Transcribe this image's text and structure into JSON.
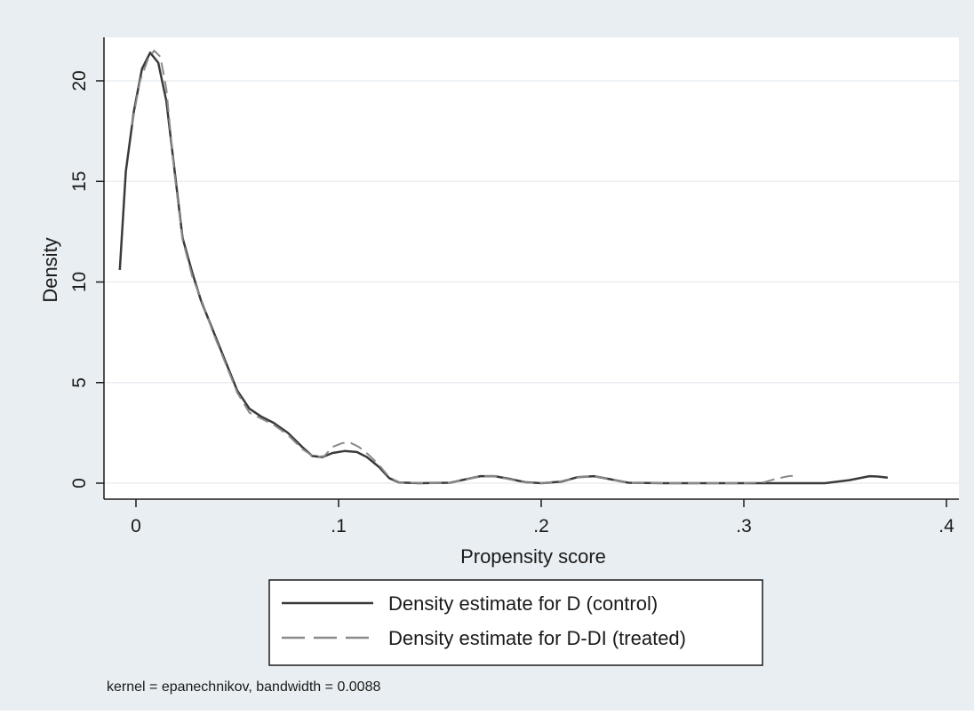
{
  "colors": {
    "outer_background": "#e9eef2",
    "plot_background": "#ffffff",
    "grid": "#e9eef2",
    "series_line": "#3a3a3a",
    "series_dashed": "#8a8a8a",
    "legend_border": "#1a1a1a"
  },
  "chart_data": {
    "type": "line",
    "title": "",
    "xlabel": "Propensity score",
    "ylabel": "Density",
    "xlim": [
      -0.01,
      0.4
    ],
    "ylim": [
      0,
      22
    ],
    "xticks": [
      0,
      0.1,
      0.2,
      0.3,
      0.4
    ],
    "xtick_labels": [
      "0",
      ".1",
      ".2",
      ".3",
      ".4"
    ],
    "yticks": [
      0,
      5,
      10,
      15,
      20
    ],
    "ytick_labels": [
      "0",
      "5",
      "10",
      "15",
      "20"
    ],
    "grid": "horizontal",
    "legend_position": "bottom",
    "note": "kernel = epanechnikov, bandwidth = 0.0088",
    "series": [
      {
        "name": "Density estimate for D (control)",
        "style": "solid",
        "points": [
          [
            -0.008,
            10.6
          ],
          [
            -0.005,
            15.5
          ],
          [
            -0.001,
            18.5
          ],
          [
            0.003,
            20.6
          ],
          [
            0.007,
            21.4
          ],
          [
            0.011,
            20.9
          ],
          [
            0.015,
            19.0
          ],
          [
            0.019,
            15.6
          ],
          [
            0.023,
            12.2
          ],
          [
            0.028,
            10.4
          ],
          [
            0.032,
            9.1
          ],
          [
            0.038,
            7.6
          ],
          [
            0.044,
            6.1
          ],
          [
            0.05,
            4.6
          ],
          [
            0.056,
            3.7
          ],
          [
            0.062,
            3.3
          ],
          [
            0.068,
            3.0
          ],
          [
            0.075,
            2.5
          ],
          [
            0.082,
            1.8
          ],
          [
            0.087,
            1.35
          ],
          [
            0.092,
            1.3
          ],
          [
            0.097,
            1.5
          ],
          [
            0.103,
            1.6
          ],
          [
            0.109,
            1.55
          ],
          [
            0.114,
            1.3
          ],
          [
            0.12,
            0.8
          ],
          [
            0.125,
            0.25
          ],
          [
            0.13,
            0.03
          ],
          [
            0.14,
            0.0
          ],
          [
            0.155,
            0.02
          ],
          [
            0.163,
            0.2
          ],
          [
            0.17,
            0.35
          ],
          [
            0.177,
            0.35
          ],
          [
            0.184,
            0.22
          ],
          [
            0.192,
            0.05
          ],
          [
            0.2,
            0.0
          ],
          [
            0.21,
            0.08
          ],
          [
            0.218,
            0.3
          ],
          [
            0.226,
            0.35
          ],
          [
            0.234,
            0.2
          ],
          [
            0.243,
            0.02
          ],
          [
            0.26,
            0.0
          ],
          [
            0.3,
            0.0
          ],
          [
            0.34,
            0.0
          ],
          [
            0.352,
            0.15
          ],
          [
            0.362,
            0.35
          ],
          [
            0.366,
            0.33
          ],
          [
            0.371,
            0.28
          ]
        ]
      },
      {
        "name": "Density estimate for D-DI (treated)",
        "style": "dashed",
        "points": [
          [
            -0.002,
            17.8
          ],
          [
            0.002,
            20.0
          ],
          [
            0.006,
            21.1
          ],
          [
            0.009,
            21.5
          ],
          [
            0.012,
            21.2
          ],
          [
            0.015,
            19.6
          ],
          [
            0.019,
            15.4
          ],
          [
            0.023,
            12.1
          ],
          [
            0.028,
            10.2
          ],
          [
            0.032,
            9.2
          ],
          [
            0.038,
            7.5
          ],
          [
            0.044,
            6.0
          ],
          [
            0.05,
            4.5
          ],
          [
            0.056,
            3.5
          ],
          [
            0.062,
            3.2
          ],
          [
            0.068,
            2.9
          ],
          [
            0.075,
            2.4
          ],
          [
            0.082,
            1.7
          ],
          [
            0.088,
            1.3
          ],
          [
            0.093,
            1.35
          ],
          [
            0.097,
            1.8
          ],
          [
            0.102,
            2.0
          ],
          [
            0.106,
            2.0
          ],
          [
            0.11,
            1.8
          ],
          [
            0.115,
            1.4
          ],
          [
            0.12,
            0.9
          ],
          [
            0.125,
            0.3
          ],
          [
            0.13,
            0.03
          ],
          [
            0.145,
            0.0
          ],
          [
            0.155,
            0.02
          ],
          [
            0.163,
            0.2
          ],
          [
            0.17,
            0.35
          ],
          [
            0.177,
            0.35
          ],
          [
            0.184,
            0.2
          ],
          [
            0.192,
            0.04
          ],
          [
            0.2,
            0.0
          ],
          [
            0.21,
            0.1
          ],
          [
            0.218,
            0.3
          ],
          [
            0.226,
            0.35
          ],
          [
            0.234,
            0.2
          ],
          [
            0.243,
            0.02
          ],
          [
            0.26,
            0.0
          ],
          [
            0.3,
            0.0
          ],
          [
            0.31,
            0.05
          ],
          [
            0.316,
            0.22
          ],
          [
            0.322,
            0.35
          ],
          [
            0.325,
            0.37
          ]
        ]
      }
    ]
  }
}
